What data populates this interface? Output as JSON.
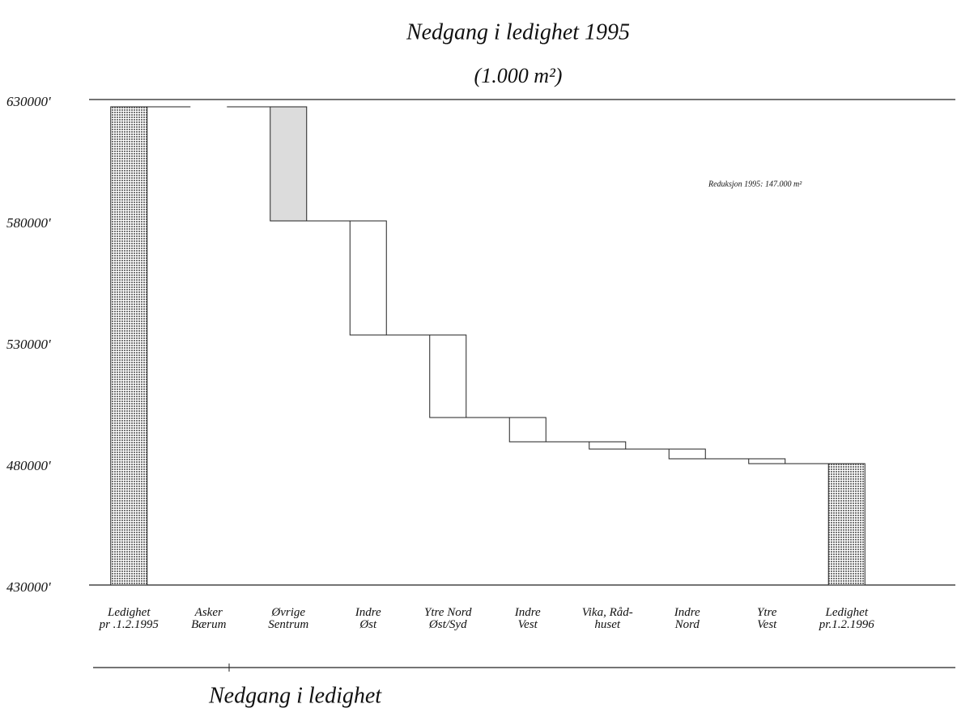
{
  "chart_data": {
    "type": "waterfall",
    "title": "Nedgang i ledighet 1995",
    "subtitle": "(1.000 m²)",
    "annotation": "Reduksjon 1995: 147.000 m²",
    "caption": "Nedgang i ledighet",
    "categories": [
      "Ledighet\npr .1.2.1995",
      "Asker\nBærum",
      "Øvrige\nSentrum",
      "Indre\nØst",
      "Ytre Nord\nØst/Syd",
      "Indre\nVest",
      "Vika, Råd-\nhuset",
      "Indre\nNord",
      "Ytre\nVest",
      "Ledighet\npr.1.2.1996"
    ],
    "values": [
      627000,
      0,
      -47000,
      -47000,
      -34000,
      -10000,
      -3000,
      -4000,
      -2000,
      480000
    ],
    "measures": [
      "absolute",
      "relative",
      "relative",
      "relative",
      "relative",
      "relative",
      "relative",
      "relative",
      "relative",
      "absolute"
    ],
    "colors": [
      "#a9a9a9",
      "#ffffff",
      "#dcdcdc",
      "#ffffff",
      "#ffffff",
      "#ffffff",
      "#ffffff",
      "#ffffff",
      "#ffffff",
      "#a9a9a9"
    ],
    "ylim": [
      430000,
      630000
    ],
    "yticks": [
      {
        "value": 430000,
        "label": "430000'"
      },
      {
        "value": 480000,
        "label": "480000'"
      },
      {
        "value": 530000,
        "label": "530000'"
      },
      {
        "value": 580000,
        "label": "580000'"
      },
      {
        "value": 630000,
        "label": "630000'"
      }
    ]
  }
}
